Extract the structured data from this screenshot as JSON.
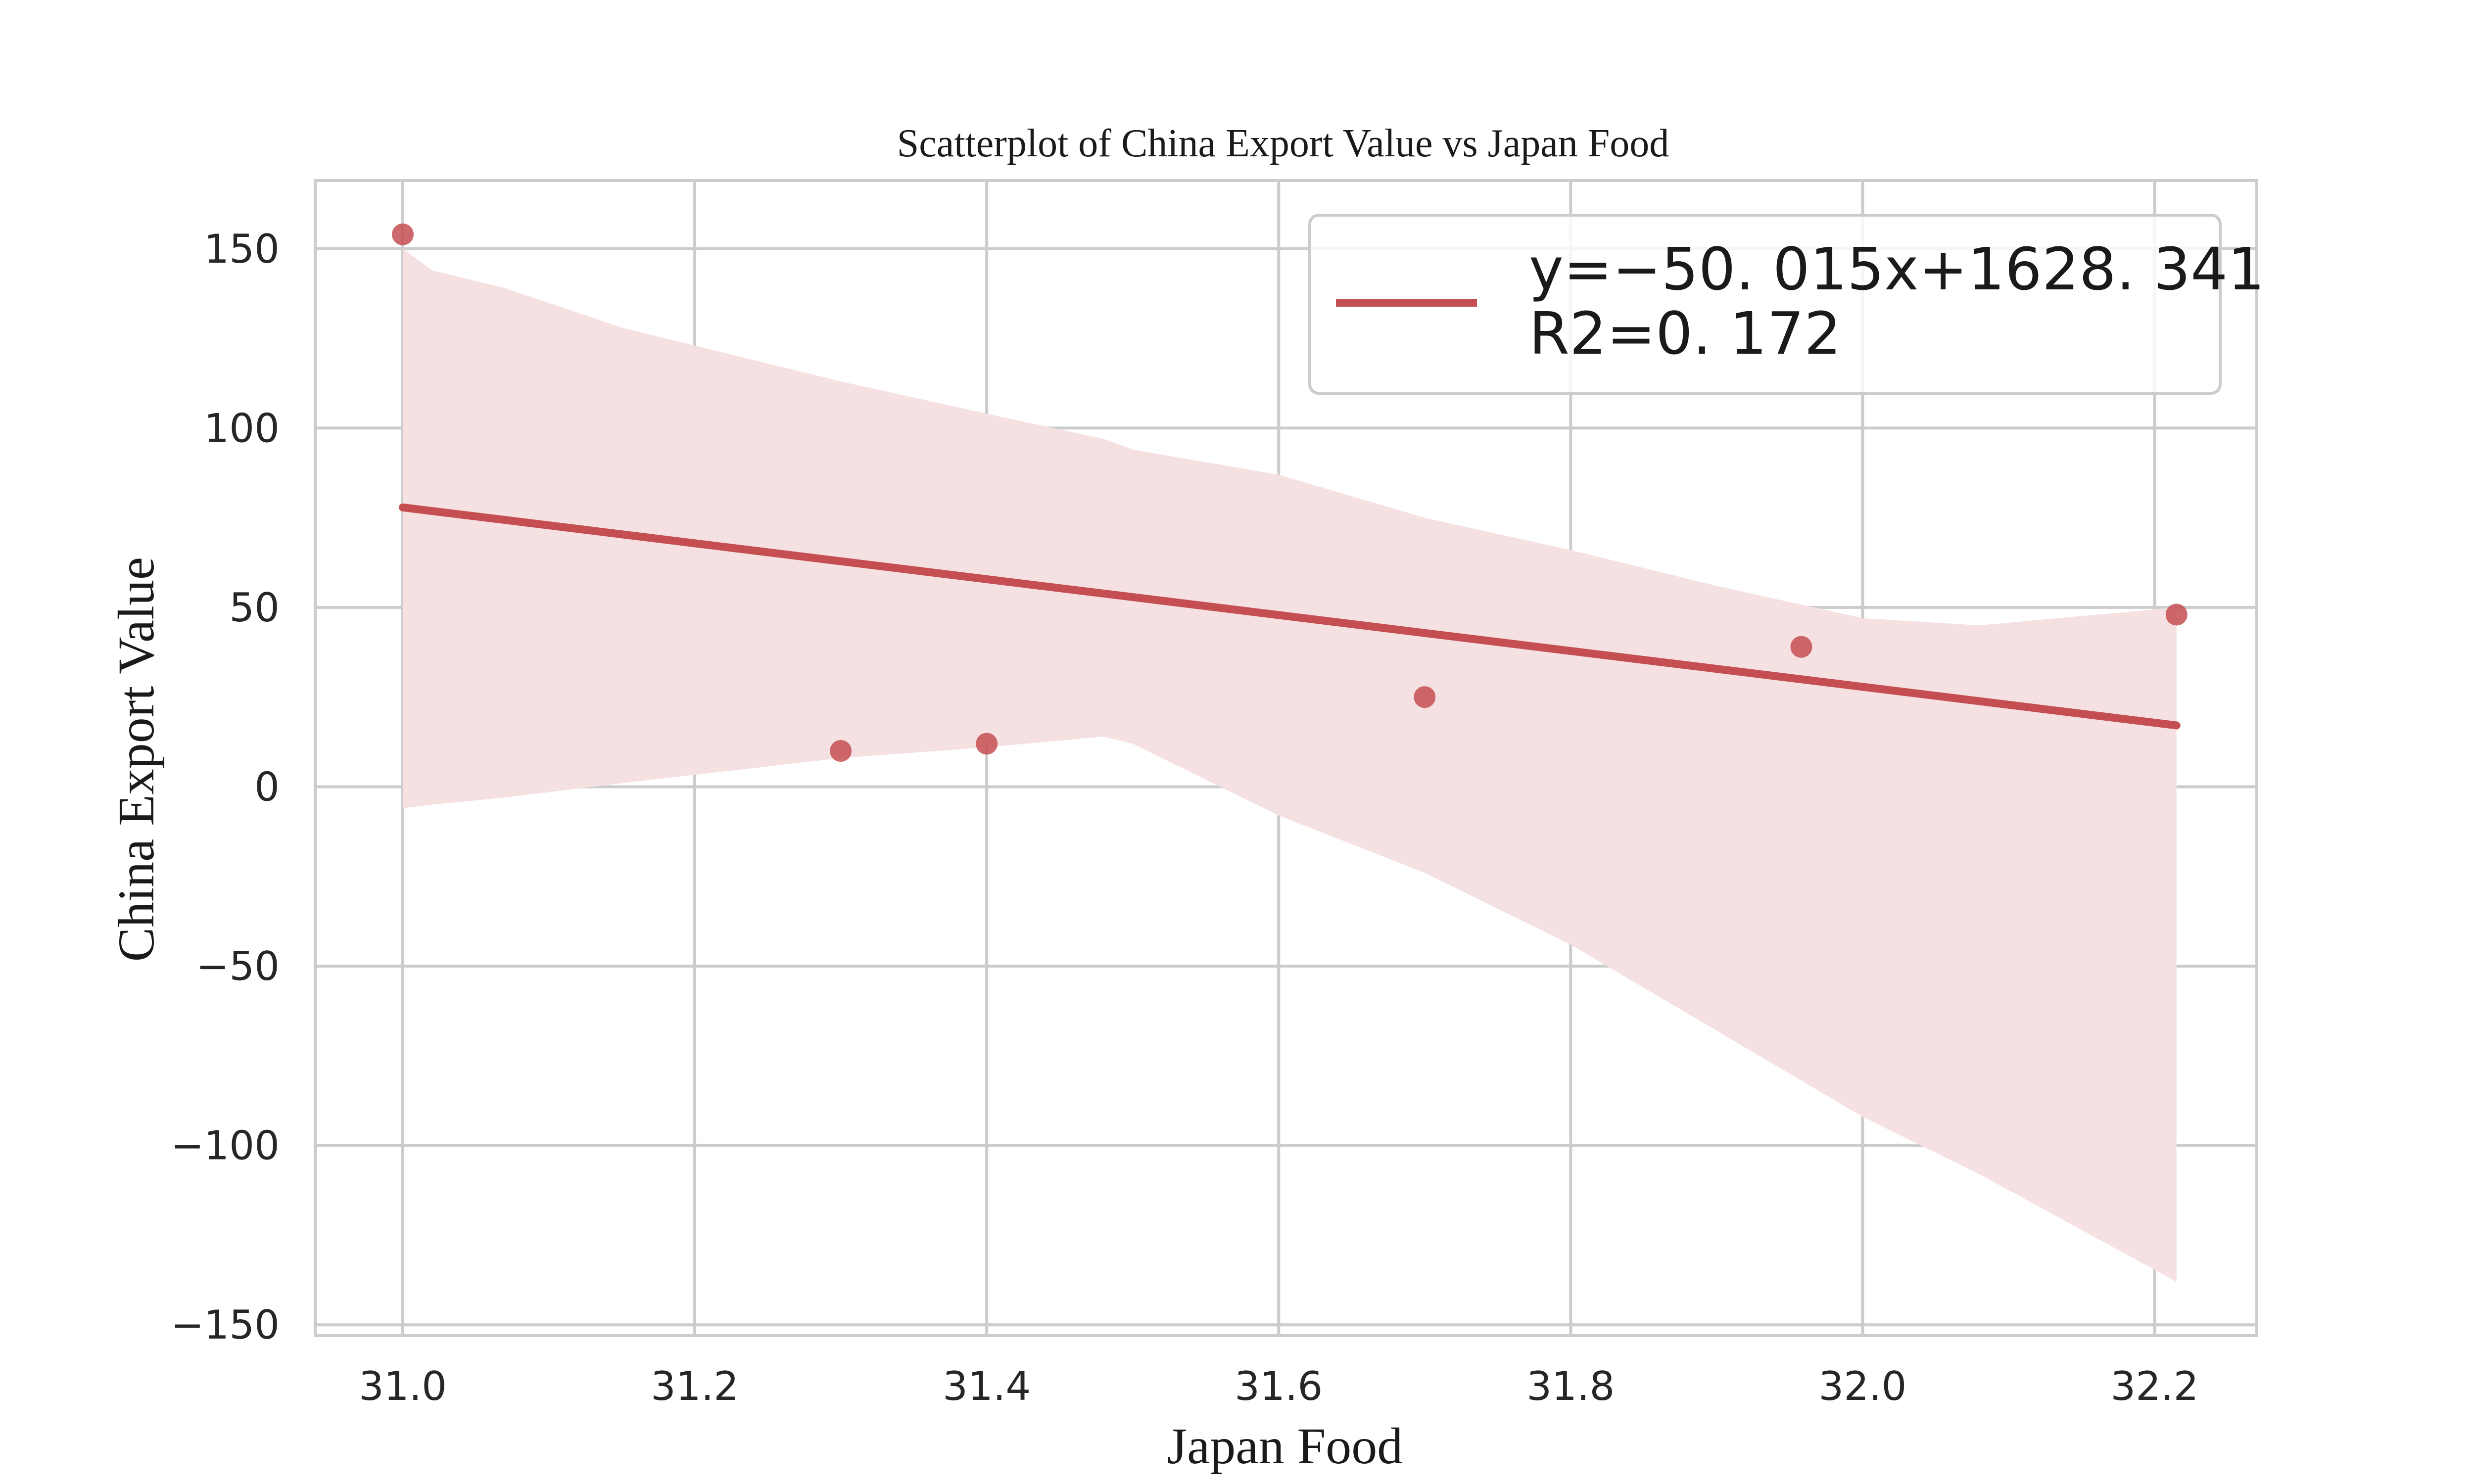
{
  "chart_data": {
    "type": "scatter",
    "title": "Scatterplot of China Export Value vs Japan Food",
    "xlabel": "Japan Food",
    "ylabel": "China Export Value",
    "xlim": [
      30.94,
      32.27
    ],
    "ylim": [
      -153,
      169
    ],
    "x_ticks": [
      31.0,
      31.2,
      31.4,
      31.6,
      31.8,
      32.0,
      32.2
    ],
    "x_tick_labels": [
      "31.0",
      "31.2",
      "31.4",
      "31.6",
      "31.8",
      "32.0",
      "32.2"
    ],
    "y_ticks": [
      150,
      100,
      50,
      0,
      -50,
      -100,
      -150
    ],
    "y_tick_labels": [
      "150",
      "100",
      "50",
      "0",
      "−50",
      "−100",
      "−150"
    ],
    "grid": true,
    "points": [
      {
        "x": 31.0,
        "y": 154
      },
      {
        "x": 31.3,
        "y": 10
      },
      {
        "x": 31.4,
        "y": 12
      },
      {
        "x": 31.7,
        "y": 25
      },
      {
        "x": 31.958,
        "y": 39
      },
      {
        "x": 32.215,
        "y": 48
      }
    ],
    "regression": {
      "slope": -50.015,
      "intercept": 1628.341,
      "x_range": [
        31.0,
        32.215
      ]
    },
    "confidence_band": {
      "x": [
        31.0,
        31.02,
        31.07,
        31.15,
        31.3,
        31.4,
        31.48,
        31.5,
        31.6,
        31.7,
        31.8,
        31.9,
        32.0,
        32.08,
        32.215
      ],
      "upper": [
        150,
        144,
        139,
        128,
        113,
        104,
        97,
        94,
        87,
        75,
        66,
        56,
        47,
        45,
        50
      ],
      "lower": [
        -6,
        -5,
        -3,
        1,
        8,
        11,
        14,
        12,
        -8,
        -24,
        -44,
        -68,
        -92,
        -108,
        -138
      ]
    },
    "legend": {
      "placement": "top-right",
      "line1": "y=−50. 015x+1628. 341",
      "line2": "R2=0. 172"
    },
    "colors": {
      "line": "#c44e52",
      "points": "#c44e52",
      "band": "#f5e1e2",
      "grid": "#cccccc"
    }
  }
}
